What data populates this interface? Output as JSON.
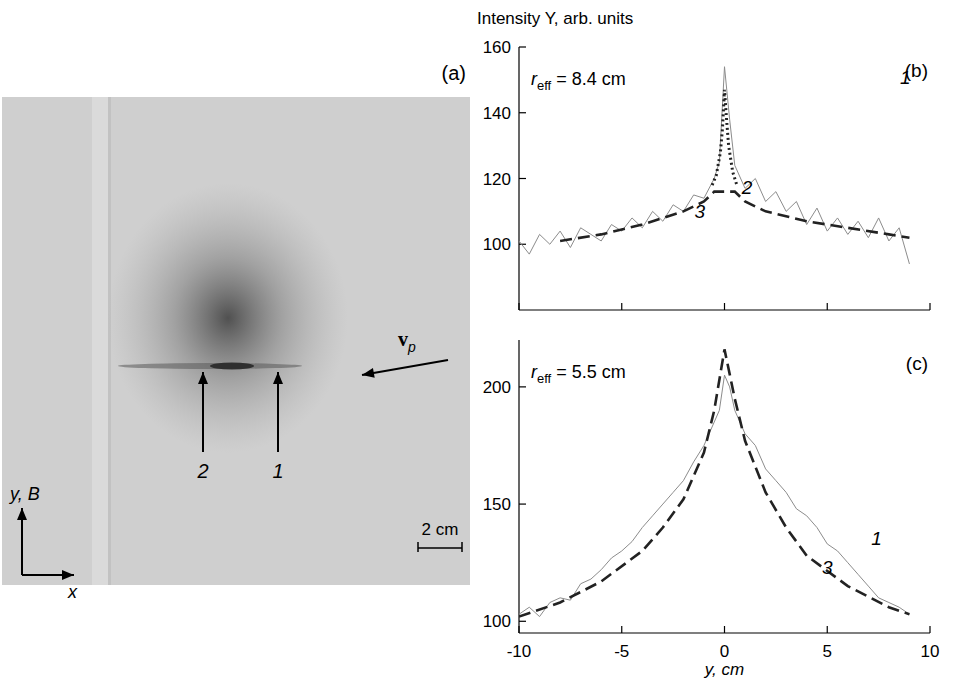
{
  "chart_data": [
    {
      "type": "line",
      "title": "(b)",
      "ylabel": "Intensity Y, arb. units",
      "annotation": {
        "symbol": "r",
        "subscript": "eff",
        "text": " = 8.4 cm"
      },
      "xlim": [
        -10,
        10
      ],
      "xticks": [
        -10,
        -5,
        0,
        5,
        10
      ],
      "ylim": [
        80,
        160
      ],
      "yticks": [
        100,
        120,
        140,
        160
      ],
      "tick_labels": "y",
      "series": [
        {
          "name": "1",
          "color": "#8c8c8c",
          "line_style": "solid",
          "x": [
            -10,
            -9.5,
            -9,
            -8.5,
            -8,
            -7.5,
            -7,
            -6.5,
            -6,
            -5.5,
            -5,
            -4.5,
            -4,
            -3.5,
            -3,
            -2.5,
            -2,
            -1.5,
            -1,
            -0.5,
            -0.25,
            0,
            0.25,
            0.5,
            1,
            1.5,
            2,
            2.5,
            3,
            3.5,
            4,
            4.5,
            5,
            5.5,
            6,
            6.5,
            7,
            7.5,
            8,
            8.5,
            9
          ],
          "values": [
            101,
            97,
            103,
            100,
            104,
            99,
            105,
            103,
            101,
            106,
            104,
            108,
            105,
            110,
            107,
            112,
            110,
            115,
            114,
            120,
            125,
            154,
            138,
            124,
            117,
            120,
            113,
            116,
            110,
            113,
            106,
            111,
            104,
            108,
            103,
            107,
            102,
            108,
            101,
            105,
            94
          ]
        },
        {
          "name": "2",
          "color": "#222222",
          "line_style": "dotted",
          "x": [
            -0.6,
            -0.4,
            -0.2,
            -0.1,
            0,
            0.1,
            0.2,
            0.4,
            0.6
          ],
          "values": [
            118,
            121,
            128,
            135,
            147,
            138,
            130,
            122,
            118
          ]
        },
        {
          "name": "3",
          "color": "#222222",
          "line_style": "dashed",
          "x": [
            -8,
            -6,
            -4,
            -2,
            -1,
            -0.5,
            0.5,
            1,
            2,
            4,
            6,
            8,
            9
          ],
          "values": [
            101,
            103,
            106,
            110,
            113,
            116,
            116,
            113,
            110,
            107,
            105,
            103,
            102
          ]
        }
      ]
    },
    {
      "type": "line",
      "title": "(c)",
      "xlabel": "y, cm",
      "annotation": {
        "symbol": "r",
        "subscript": "eff",
        "text": " = 5.5 cm"
      },
      "xlim": [
        -10,
        10
      ],
      "xticks": [
        -10,
        -5,
        0,
        5,
        10
      ],
      "ylim": [
        95,
        220
      ],
      "yticks": [
        100,
        150,
        200
      ],
      "series": [
        {
          "name": "1",
          "color": "#8c8c8c",
          "line_style": "solid",
          "x": [
            -10,
            -9.5,
            -9,
            -8.5,
            -8,
            -7.5,
            -7,
            -6.5,
            -6,
            -5.5,
            -5,
            -4.5,
            -4,
            -3.5,
            -3,
            -2.5,
            -2,
            -1.5,
            -1,
            -0.5,
            -0.25,
            0,
            0.25,
            0.5,
            1,
            1.5,
            2,
            2.5,
            3,
            3.5,
            4,
            4.5,
            5,
            5.5,
            6,
            6.5,
            7,
            7.5,
            8,
            8.5,
            9
          ],
          "values": [
            103,
            106,
            102,
            108,
            110,
            109,
            116,
            118,
            122,
            127,
            130,
            134,
            140,
            145,
            150,
            155,
            160,
            168,
            175,
            185,
            190,
            205,
            200,
            190,
            180,
            175,
            165,
            160,
            155,
            148,
            145,
            140,
            133,
            130,
            125,
            120,
            115,
            110,
            108,
            106,
            103
          ]
        },
        {
          "name": "3",
          "color": "#222222",
          "line_style": "dashed",
          "x": [
            -10,
            -8,
            -6,
            -4,
            -3,
            -2,
            -1,
            -0.5,
            0,
            0.5,
            1,
            2,
            3,
            4,
            6,
            8,
            9
          ],
          "values": [
            102,
            108,
            117,
            130,
            140,
            152,
            172,
            190,
            216,
            195,
            177,
            155,
            140,
            128,
            115,
            106,
            103
          ]
        }
      ]
    }
  ],
  "panel_a": {
    "label": "(a)",
    "markers": [
      {
        "label": "1"
      },
      {
        "label": "2"
      }
    ],
    "velocity": {
      "symbol": "v",
      "subscript": "p"
    },
    "axes": {
      "y": "y, B",
      "x": "x"
    },
    "scale_bar": "2 cm"
  }
}
